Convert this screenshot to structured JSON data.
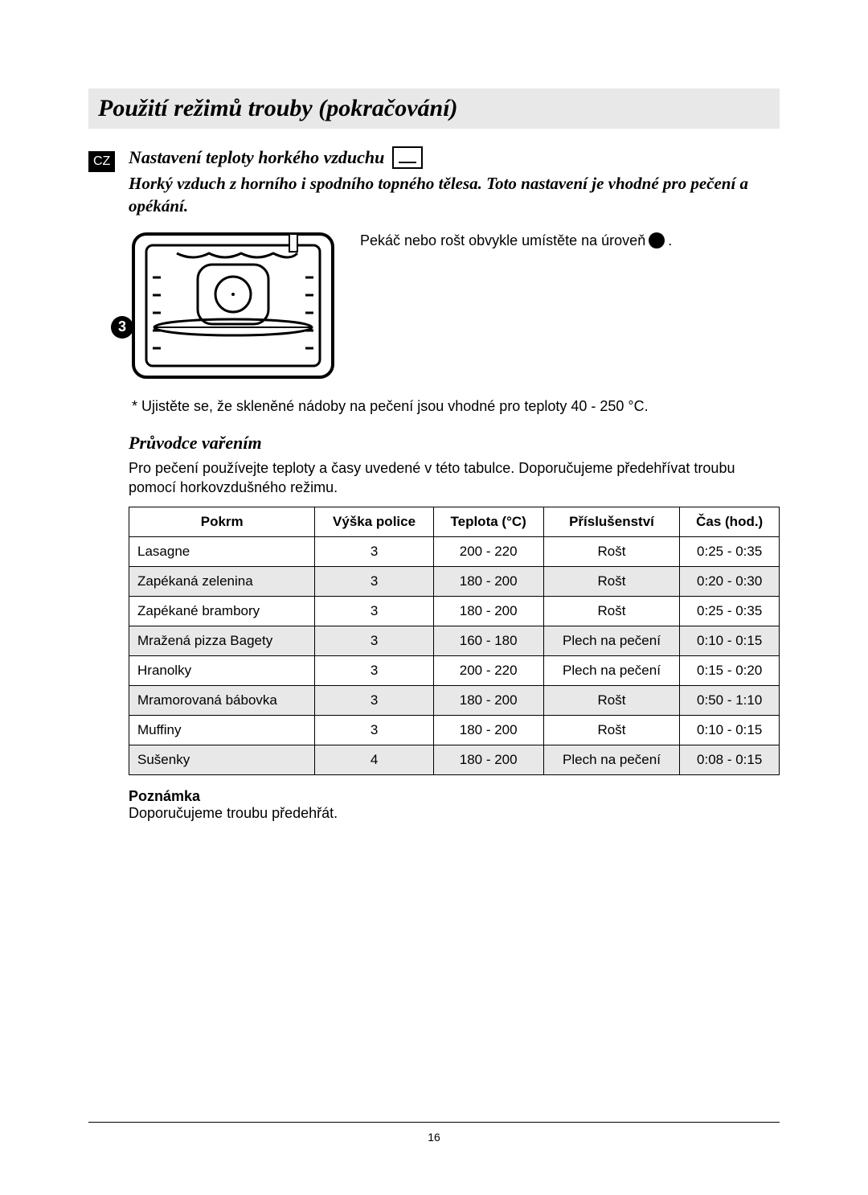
{
  "page_number": "16",
  "lang_code": "CZ",
  "title": "Použití režimů trouby (pokračování)",
  "section": {
    "heading": "Nastavení teploty horkého vzduchu",
    "lead": "Horký vzduch z horního i spodního topného tělesa. Toto nastavení je vhodné pro pečení a opékání.",
    "placement_text": "Pekáč nebo rošt obvykle umístěte na úroveň ",
    "placement_suffix": ".",
    "level_badge": "3",
    "star_note": "*   Ujistěte se, že skleněné nádoby na pečení jsou vhodné pro teploty 40 - 250 °C."
  },
  "guide": {
    "heading": "Průvodce vařením",
    "intro": "Pro pečení používejte teploty a časy uvedené v této tabulce. Doporučujeme předehřívat troubu pomocí horkovzdušného režimu.",
    "columns": [
      "Pokrm",
      "Výška police",
      "Teplota (°C)",
      "Příslušenství",
      "Čas (hod.)"
    ],
    "rows": [
      {
        "cells": [
          "Lasagne",
          "3",
          "200 - 220",
          "Rošt",
          "0:25 - 0:35"
        ],
        "shade": false
      },
      {
        "cells": [
          "Zapékaná zelenina",
          "3",
          "180 - 200",
          "Rošt",
          "0:20 - 0:30"
        ],
        "shade": true
      },
      {
        "cells": [
          "Zapékané brambory",
          "3",
          "180 - 200",
          "Rošt",
          "0:25 - 0:35"
        ],
        "shade": false
      },
      {
        "cells": [
          "Mražená pizza Bagety",
          "3",
          "160 - 180",
          "Plech na pečení",
          "0:10 - 0:15"
        ],
        "shade": true
      },
      {
        "cells": [
          "Hranolky",
          "3",
          "200 - 220",
          "Plech na pečení",
          "0:15 - 0:20"
        ],
        "shade": false
      },
      {
        "cells": [
          "Mramorovaná bábovka",
          "3",
          "180 - 200",
          "Rošt",
          "0:50 - 1:10"
        ],
        "shade": true
      },
      {
        "cells": [
          "Muffiny",
          "3",
          "180 - 200",
          "Rošt",
          "0:10 - 0:15"
        ],
        "shade": false
      },
      {
        "cells": [
          "Sušenky",
          "4",
          "180 - 200",
          "Plech na pečení",
          "0:08 - 0:15"
        ],
        "shade": true
      }
    ],
    "note_label": "Poznámka",
    "note_text": "Doporučujeme troubu předehřát."
  },
  "colors": {
    "title_bg": "#e8e8e8",
    "shade_bg": "#e8e8e8",
    "border": "#000000",
    "text": "#000000"
  }
}
